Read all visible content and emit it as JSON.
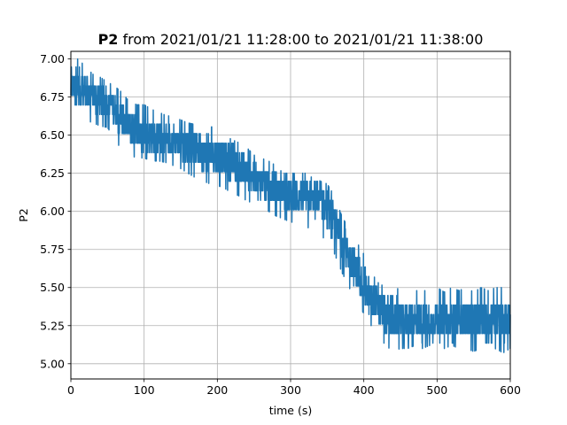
{
  "chart_data": {
    "type": "line",
    "title_bold": "P2",
    "title_rest": " from 2021/01/21 11:28:00 to 2021/01/21 11:38:00",
    "xlabel": "time (s)",
    "ylabel": "P2",
    "xlim": [
      0,
      600
    ],
    "ylim": [
      4.9,
      7.05
    ],
    "x_ticks": [
      0,
      100,
      200,
      300,
      400,
      500,
      600
    ],
    "x_tick_labels": [
      "0",
      "100",
      "200",
      "300",
      "400",
      "500",
      "600"
    ],
    "y_ticks": [
      5.0,
      5.25,
      5.5,
      5.75,
      6.0,
      6.25,
      6.5,
      6.75,
      7.0
    ],
    "y_tick_labels": [
      "5.00",
      "5.25",
      "5.50",
      "5.75",
      "6.00",
      "6.25",
      "6.50",
      "6.75",
      "7.00"
    ],
    "grid": true,
    "legend": "none",
    "series_color": "#1f77b4",
    "series": [
      {
        "x": [
          0,
          10,
          20,
          30,
          40,
          50,
          60,
          70,
          80,
          90,
          100,
          110,
          120,
          130,
          140,
          150,
          160,
          170,
          180,
          190,
          200,
          210,
          220,
          230,
          240,
          250,
          260,
          270,
          280,
          290,
          300,
          310,
          320,
          330,
          340,
          350,
          360,
          370,
          380,
          390,
          400,
          410,
          420,
          430,
          440,
          450,
          460,
          470,
          480,
          490,
          500,
          510,
          520,
          530,
          540,
          550,
          560,
          570,
          580,
          590,
          600
        ],
        "y_mean": [
          6.82,
          6.8,
          6.77,
          6.74,
          6.72,
          6.7,
          6.66,
          6.6,
          6.55,
          6.52,
          6.5,
          6.49,
          6.48,
          6.47,
          6.46,
          6.44,
          6.42,
          6.4,
          6.38,
          6.37,
          6.36,
          6.34,
          6.31,
          6.28,
          6.25,
          6.21,
          6.18,
          6.16,
          6.14,
          6.12,
          6.1,
          6.09,
          6.08,
          6.07,
          6.06,
          6.0,
          5.9,
          5.8,
          5.7,
          5.6,
          5.5,
          5.42,
          5.36,
          5.32,
          5.29,
          5.28,
          5.27,
          5.27,
          5.27,
          5.27,
          5.27,
          5.27,
          5.27,
          5.28,
          5.28,
          5.28,
          5.28,
          5.28,
          5.28,
          5.28,
          5.28
        ],
        "y_max": [
          7.0,
          7.0,
          6.95,
          6.9,
          6.88,
          6.85,
          6.82,
          6.78,
          6.72,
          6.7,
          6.7,
          6.67,
          6.65,
          6.63,
          6.62,
          6.6,
          6.58,
          6.57,
          6.55,
          6.55,
          6.57,
          6.5,
          6.47,
          6.45,
          6.42,
          6.37,
          6.35,
          6.33,
          6.3,
          6.25,
          6.25,
          6.25,
          6.25,
          6.22,
          6.2,
          6.18,
          6.1,
          5.97,
          5.88,
          5.8,
          5.72,
          5.6,
          5.53,
          5.5,
          5.48,
          5.5,
          5.5,
          5.48,
          5.48,
          5.48,
          5.5,
          5.47,
          5.5,
          5.48,
          5.5,
          5.47,
          5.5,
          5.48,
          5.5,
          5.5,
          5.45
        ],
        "y_min": [
          6.62,
          6.6,
          6.6,
          6.58,
          6.56,
          6.55,
          6.47,
          6.4,
          6.37,
          6.35,
          6.35,
          6.33,
          6.33,
          6.32,
          6.3,
          6.28,
          6.25,
          6.22,
          6.2,
          6.18,
          6.17,
          6.15,
          6.12,
          6.1,
          6.07,
          6.05,
          6.02,
          6.0,
          5.97,
          5.95,
          5.93,
          5.92,
          5.9,
          5.88,
          5.85,
          5.8,
          5.72,
          5.6,
          5.5,
          5.4,
          5.33,
          5.25,
          5.18,
          5.12,
          5.08,
          5.1,
          5.1,
          5.12,
          5.1,
          5.12,
          5.08,
          5.1,
          5.12,
          5.1,
          5.1,
          5.08,
          5.1,
          5.0,
          5.1,
          5.07,
          5.1
        ]
      }
    ]
  }
}
